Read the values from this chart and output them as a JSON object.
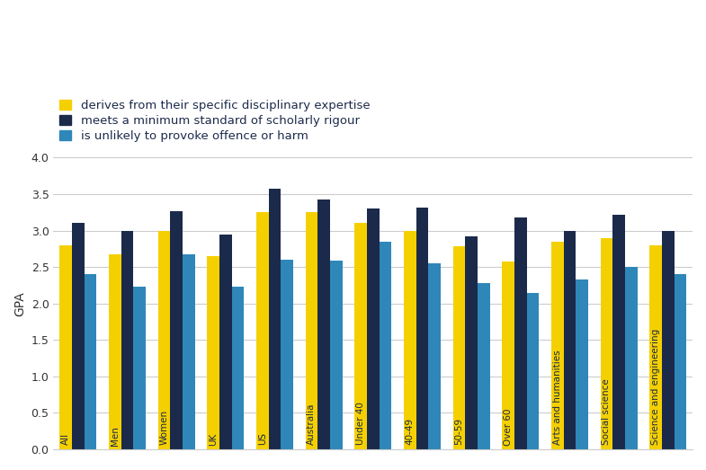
{
  "categories": [
    "All",
    "Men",
    "Women",
    "UK",
    "US",
    "Australia",
    "Under 40",
    "40-49",
    "50-59",
    "Over 60",
    "Arts and humanities",
    "Social science",
    "Science and engineering"
  ],
  "series": {
    "derives from their specific disciplinary expertise": [
      2.8,
      2.68,
      3.0,
      2.65,
      3.25,
      3.25,
      3.1,
      3.0,
      2.78,
      2.58,
      2.85,
      2.9,
      2.8
    ],
    "meets a minimum standard of scholarly rigour": [
      3.1,
      3.0,
      3.27,
      2.95,
      3.58,
      3.43,
      3.3,
      3.32,
      2.92,
      3.18,
      3.0,
      3.22,
      3.0
    ],
    "is unlikely to provoke offence or harm": [
      2.4,
      2.23,
      2.67,
      2.23,
      2.6,
      2.59,
      2.85,
      2.55,
      2.28,
      2.15,
      2.33,
      2.5,
      2.4
    ]
  },
  "colors": {
    "derives from their specific disciplinary expertise": "#F5D000",
    "meets a minimum standard of scholarly rigour": "#1B2A4A",
    "is unlikely to provoke offence or harm": "#2E87B8"
  },
  "ylabel": "GPA",
  "ylim": [
    0,
    4.0
  ],
  "yticks": [
    0,
    0.5,
    1.0,
    1.5,
    2.0,
    2.5,
    3.0,
    3.5,
    4.0
  ],
  "background_color": "#ffffff",
  "bar_width": 0.25,
  "legend_order": [
    "derives from their specific disciplinary expertise",
    "meets a minimum standard of scholarly rigour",
    "is unlikely to provoke offence or harm"
  ],
  "label_colors": {
    "derives from their specific disciplinary expertise": "#1B2A4A",
    "meets a minimum standard of scholarly rigour": "#1B2A4A",
    "is unlikely to provoke offence or harm": "#1B2A4A"
  }
}
